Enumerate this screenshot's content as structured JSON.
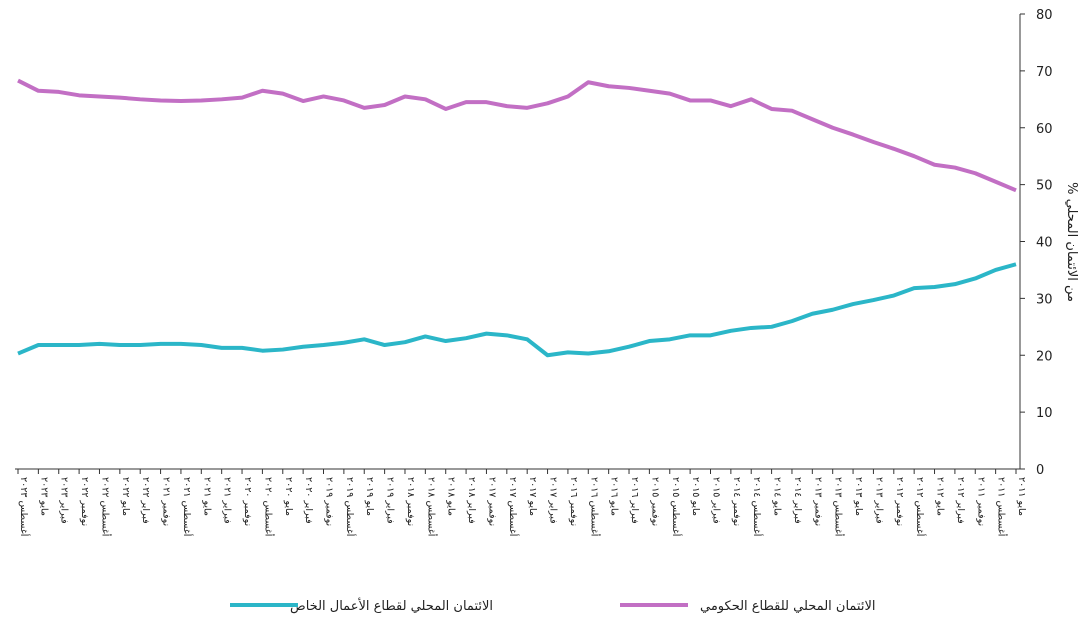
{
  "chart_data": {
    "type": "line",
    "ylabel": "% من الائتمان المحلي",
    "x_reversed": true,
    "categories": [
      "مايو ٢٠١١",
      "أغسطس ٢٠١١",
      "نوفمبر ٢٠١١",
      "فبراير ٢٠١٢",
      "مايو ٢٠١٢",
      "أغسطس ٢٠١٢",
      "نوفمبر ٢٠١٢",
      "فبراير ٢٠١٣",
      "مايو ٢٠١٣",
      "أغسطس ٢٠١٣",
      "نوفمبر ٢٠١٣",
      "فبراير ٢٠١٤",
      "مايو ٢٠١٤",
      "أغسطس ٢٠١٤",
      "نوفمبر ٢٠١٤",
      "فبراير ٢٠١٥",
      "مايو ٢٠١٥",
      "أغسطس ٢٠١٥",
      "نوفمبر ٢٠١٥",
      "فبراير ٢٠١٦",
      "مايو ٢٠١٦",
      "أغسطس ٢٠١٦",
      "نوفمبر ٢٠١٦",
      "فبراير ٢٠١٧",
      "مايو ٢٠١٧",
      "أغسطس ٢٠١٧",
      "نوفمبر ٢٠١٧",
      "فبراير ٢٠١٨",
      "مايو ٢٠١٨",
      "أغسطس ٢٠١٨",
      "نوفمبر ٢٠١٨",
      "فبراير ٢٠١٩",
      "مايو ٢٠١٩",
      "أغسطس ٢٠١٩",
      "نوفمبر ٢٠١٩",
      "فبراير ٢٠٢٠",
      "مايو ٢٠٢٠",
      "أغسطس ٢٠٢٠",
      "نوفمبر ٢٠٢٠",
      "فبراير ٢٠٢١",
      "مايو ٢٠٢١",
      "أغسطس ٢٠٢١",
      "نوفمبر ٢٠٢١",
      "فبراير ٢٠٢٢",
      "مايو ٢٠٢٢",
      "أغسطس ٢٠٢٢",
      "نوفمبر ٢٠٢٢",
      "فبراير ٢٠٢٣",
      "مايو ٢٠٢٣",
      "أغسطس ٢٠٢٣"
    ],
    "series": [
      {
        "name": "الائتمان المحلي للقطاع الحكومي",
        "color": "#c26fc4",
        "values": [
          49,
          50.5,
          52,
          53,
          53.5,
          55,
          56.3,
          57.5,
          58.8,
          60,
          61.5,
          63,
          63.3,
          65,
          63.8,
          64.8,
          64.8,
          66,
          66.5,
          67,
          67.3,
          68,
          65.5,
          64.3,
          63.5,
          63.8,
          64.5,
          64.5,
          63.3,
          65,
          65.5,
          64,
          63.5,
          64.8,
          65.5,
          64.7,
          66,
          66.5,
          65.3,
          65,
          64.8,
          64.7,
          64.8,
          65,
          65.3,
          65.5,
          65.7,
          66.3,
          66.5,
          68.3
        ]
      },
      {
        "name": "الائتمان المحلي لقطاع الأعمال الخاص",
        "color": "#2bb6c8",
        "values": [
          36,
          35,
          33.5,
          32.5,
          32,
          31.8,
          30.5,
          29.7,
          29,
          28,
          27.3,
          26,
          25,
          24.8,
          24.3,
          23.5,
          23.5,
          22.8,
          22.5,
          21.5,
          20.7,
          20.3,
          20.5,
          20,
          22.8,
          23.5,
          23.8,
          23,
          22.5,
          23.3,
          22.3,
          21.8,
          22.8,
          22.2,
          21.8,
          21.5,
          21,
          20.8,
          21.3,
          21.3,
          21.8,
          22,
          22,
          21.8,
          21.8,
          22,
          21.8,
          21.8,
          21.8,
          20.3
        ]
      }
    ],
    "ylim": [
      0,
      80
    ],
    "yticks": [
      0,
      10,
      20,
      30,
      40,
      50,
      60,
      70,
      80
    ]
  }
}
